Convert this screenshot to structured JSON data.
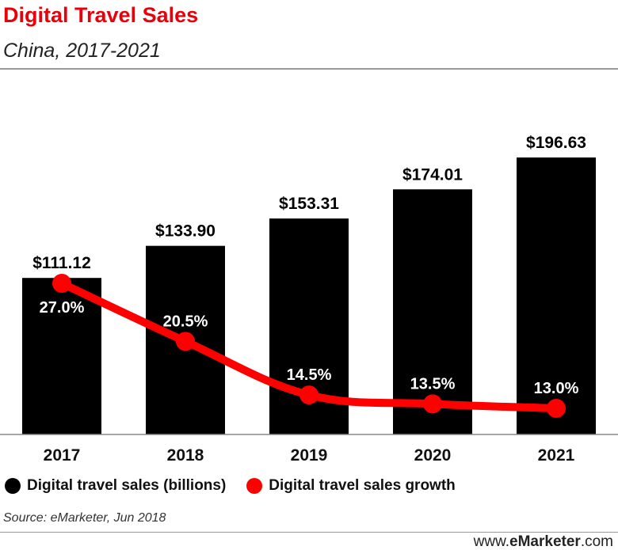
{
  "header": {
    "title": "Digital Travel Sales",
    "subtitle": "China, 2017-2021"
  },
  "chart_data": {
    "type": "bar",
    "categories": [
      "2017",
      "2018",
      "2019",
      "2020",
      "2021"
    ],
    "series": [
      {
        "name": "Digital travel sales (billions)",
        "type": "bar",
        "values": [
          111.12,
          133.9,
          153.31,
          174.01,
          196.63
        ],
        "labels": [
          "$111.12",
          "$133.90",
          "$153.31",
          "$174.01",
          "$196.63"
        ],
        "color": "#000000"
      },
      {
        "name": "Digital travel sales growth",
        "type": "line",
        "values": [
          27.0,
          20.5,
          14.5,
          13.5,
          13.0
        ],
        "labels": [
          "27.0%",
          "20.5%",
          "14.5%",
          "13.5%",
          "13.0%"
        ],
        "color": "#ff0000"
      }
    ],
    "bar_axis_max": 220,
    "line_axis_range": [
      0,
      35
    ],
    "grid": false,
    "legend_position": "bottom"
  },
  "legend": {
    "items": [
      {
        "label": "Digital travel sales (billions)",
        "color": "#000000"
      },
      {
        "label": "Digital travel sales growth",
        "color": "#ff0000"
      }
    ]
  },
  "footer": {
    "source": "Source: eMarketer, Jun 2018",
    "brand_prefix": "www.",
    "brand_bold": "eMarketer",
    "brand_suffix": ".com"
  },
  "colors": {
    "title": "#e8000b",
    "bar": "#000000",
    "line": "#ff0000"
  }
}
